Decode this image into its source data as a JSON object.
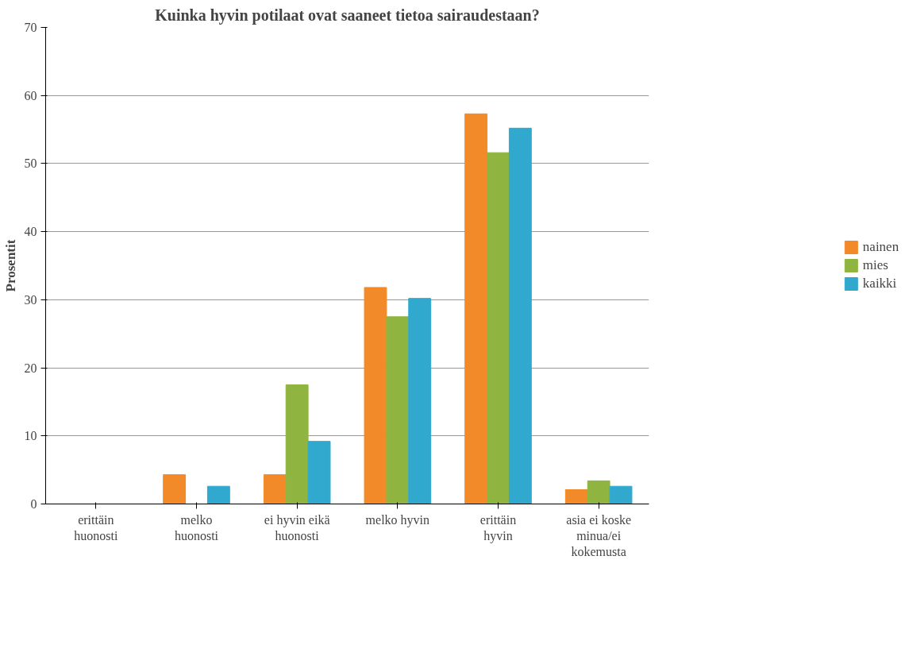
{
  "chart_data": {
    "type": "bar",
    "title": "Kuinka hyvin potilaat ovat saaneet tietoa sairaudestaan?",
    "ylabel": "Prosentit",
    "categories": [
      "erittäin huonosti",
      "melko huonosti",
      "ei hyvin eikä huonosti",
      "melko hyvin",
      "erittäin hyvin",
      "asia ei koske minua/ei kokemusta"
    ],
    "series": [
      {
        "name": "nainen",
        "color": "#f28a2a",
        "values": [
          0,
          4.3,
          4.3,
          31.8,
          57.3,
          2.1
        ]
      },
      {
        "name": "mies",
        "color": "#8fb440",
        "values": [
          0,
          0,
          17.5,
          27.5,
          51.6,
          3.4
        ]
      },
      {
        "name": "kaikki",
        "color": "#31a9cf",
        "values": [
          0,
          2.6,
          9.2,
          30.2,
          55.2,
          2.6
        ]
      }
    ],
    "ylim": [
      0,
      70
    ],
    "yticks": [
      0,
      10,
      20,
      30,
      40,
      50,
      60,
      70
    ],
    "grid": "y",
    "legend": "right"
  }
}
